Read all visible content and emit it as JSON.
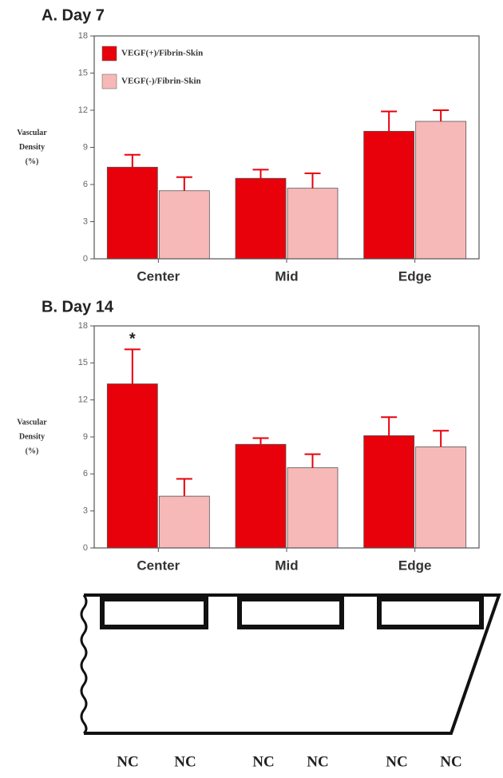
{
  "chart_data": [
    {
      "type": "bar",
      "title": "A. Day 7",
      "ylabel": [
        "Vascular",
        "Density",
        "(%)"
      ],
      "categories": [
        "Center",
        "Mid",
        "Edge"
      ],
      "series": [
        {
          "name": "VEGF(+)/Fibrin-Skin",
          "color": "#e8000b",
          "values": [
            7.4,
            6.5,
            10.3
          ],
          "errors": [
            1.0,
            0.7,
            1.6
          ]
        },
        {
          "name": "VEGF(-)/Fibrin-Skin",
          "color": "#f7b8b8",
          "values": [
            5.5,
            5.7,
            11.1
          ],
          "errors": [
            1.1,
            1.2,
            0.9
          ]
        }
      ],
      "ylim": [
        0,
        18
      ],
      "yticks": [
        0,
        3,
        6,
        9,
        12,
        15,
        18
      ],
      "legend": "upper left"
    },
    {
      "type": "bar",
      "title": "B. Day 14",
      "ylabel": [
        "Vascular",
        "Density",
        "(%)"
      ],
      "categories": [
        "Center",
        "Mid",
        "Edge"
      ],
      "series": [
        {
          "color": "#e8000b",
          "values": [
            13.3,
            8.4,
            9.1
          ],
          "errors": [
            2.8,
            0.5,
            1.5
          ]
        },
        {
          "color": "#f7b8b8",
          "values": [
            4.2,
            6.5,
            8.2
          ],
          "errors": [
            1.4,
            1.1,
            1.3
          ]
        }
      ],
      "ylim": [
        0,
        18
      ],
      "yticks": [
        0,
        3,
        6,
        9,
        12,
        15,
        18
      ],
      "annotations": [
        {
          "text": "*",
          "series": 0,
          "category": 0
        }
      ]
    }
  ],
  "diagram": {
    "labels": [
      "NC",
      "NC",
      "NC",
      "NC",
      "NC",
      "NC"
    ]
  }
}
